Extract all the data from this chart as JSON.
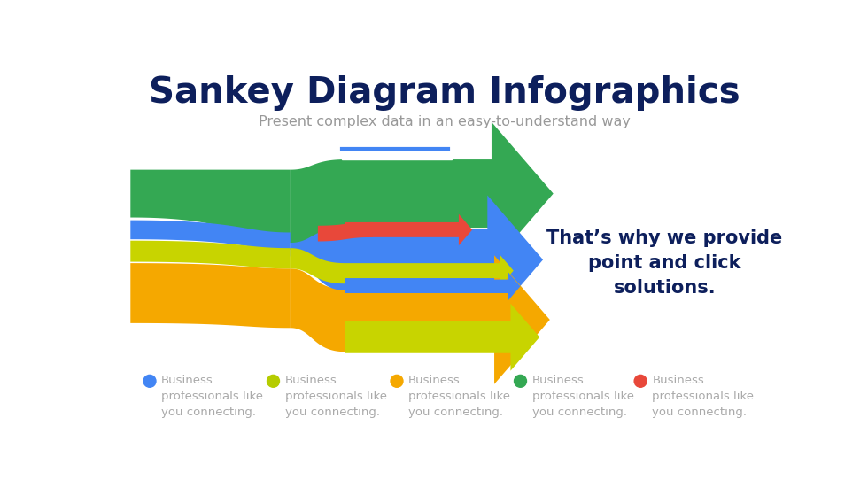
{
  "title": "Sankey Diagram Infographics",
  "subtitle": "Present complex data in an easy-to-understand way",
  "title_color": "#0d1f5c",
  "subtitle_color": "#999999",
  "side_text": "That’s why we provide\npoint and click\nsolutions.",
  "side_text_color": "#0d1f5c",
  "legend_colors": [
    "#4285f4",
    "#b5cc00",
    "#f5a800",
    "#34a853",
    "#e8483a"
  ],
  "legend_text": "Business\nprofessionals like\nyou connecting.",
  "bg_color": "#ffffff",
  "green": "#34a853",
  "blue": "#4285f4",
  "yellow": "#c8d400",
  "orange": "#f5a800",
  "red": "#e8483a",
  "white": "#ffffff"
}
